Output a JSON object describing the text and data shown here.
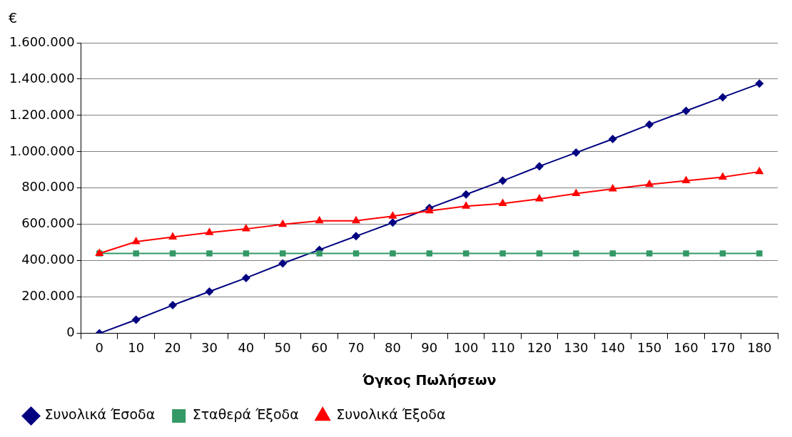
{
  "chart_data": {
    "type": "line",
    "xlabel": "Όγκος Πωλήσεων",
    "ylabel": "€",
    "categories": [
      "0",
      "10",
      "20",
      "30",
      "40",
      "50",
      "60",
      "70",
      "80",
      "90",
      "100",
      "110",
      "120",
      "130",
      "140",
      "150",
      "160",
      "170",
      "180"
    ],
    "series": [
      {
        "name": "Συνολικά Έσοδα",
        "color": "#000080",
        "marker": "diamond",
        "values": [
          0,
          75000,
          155000,
          230000,
          305000,
          385000,
          460000,
          535000,
          610000,
          690000,
          765000,
          840000,
          920000,
          995000,
          1070000,
          1150000,
          1225000,
          1300000,
          1375000
        ]
      },
      {
        "name": "Σταθερά Έξοδα",
        "color": "#339966",
        "marker": "square",
        "values": [
          440000,
          440000,
          440000,
          440000,
          440000,
          440000,
          440000,
          440000,
          440000,
          440000,
          440000,
          440000,
          440000,
          440000,
          440000,
          440000,
          440000,
          440000,
          440000
        ]
      },
      {
        "name": "Συνολικά Έξοδα",
        "color": "#ff0000",
        "marker": "triangle",
        "values": [
          440000,
          505000,
          530000,
          555000,
          575000,
          600000,
          620000,
          620000,
          645000,
          675000,
          700000,
          715000,
          740000,
          770000,
          795000,
          820000,
          840000,
          860000,
          890000
        ]
      }
    ],
    "ylim": [
      0,
      1600000
    ],
    "yticks": [
      0,
      {
        "value": 200000,
        "label": "200.000"
      },
      {
        "value": 400000,
        "label": "400.000"
      },
      {
        "value": 600000,
        "label": "600.000"
      },
      {
        "value": 800000,
        "label": "800.000"
      },
      {
        "value": 1000000,
        "label": "1.000.000"
      },
      {
        "value": 1200000,
        "label": "1.200.000"
      },
      {
        "value": 1400000,
        "label": "1.400.000"
      },
      {
        "value": 1600000,
        "label": "1.600.000"
      }
    ],
    "grid": "y",
    "legend": "bottom",
    "line_style": "solid"
  }
}
